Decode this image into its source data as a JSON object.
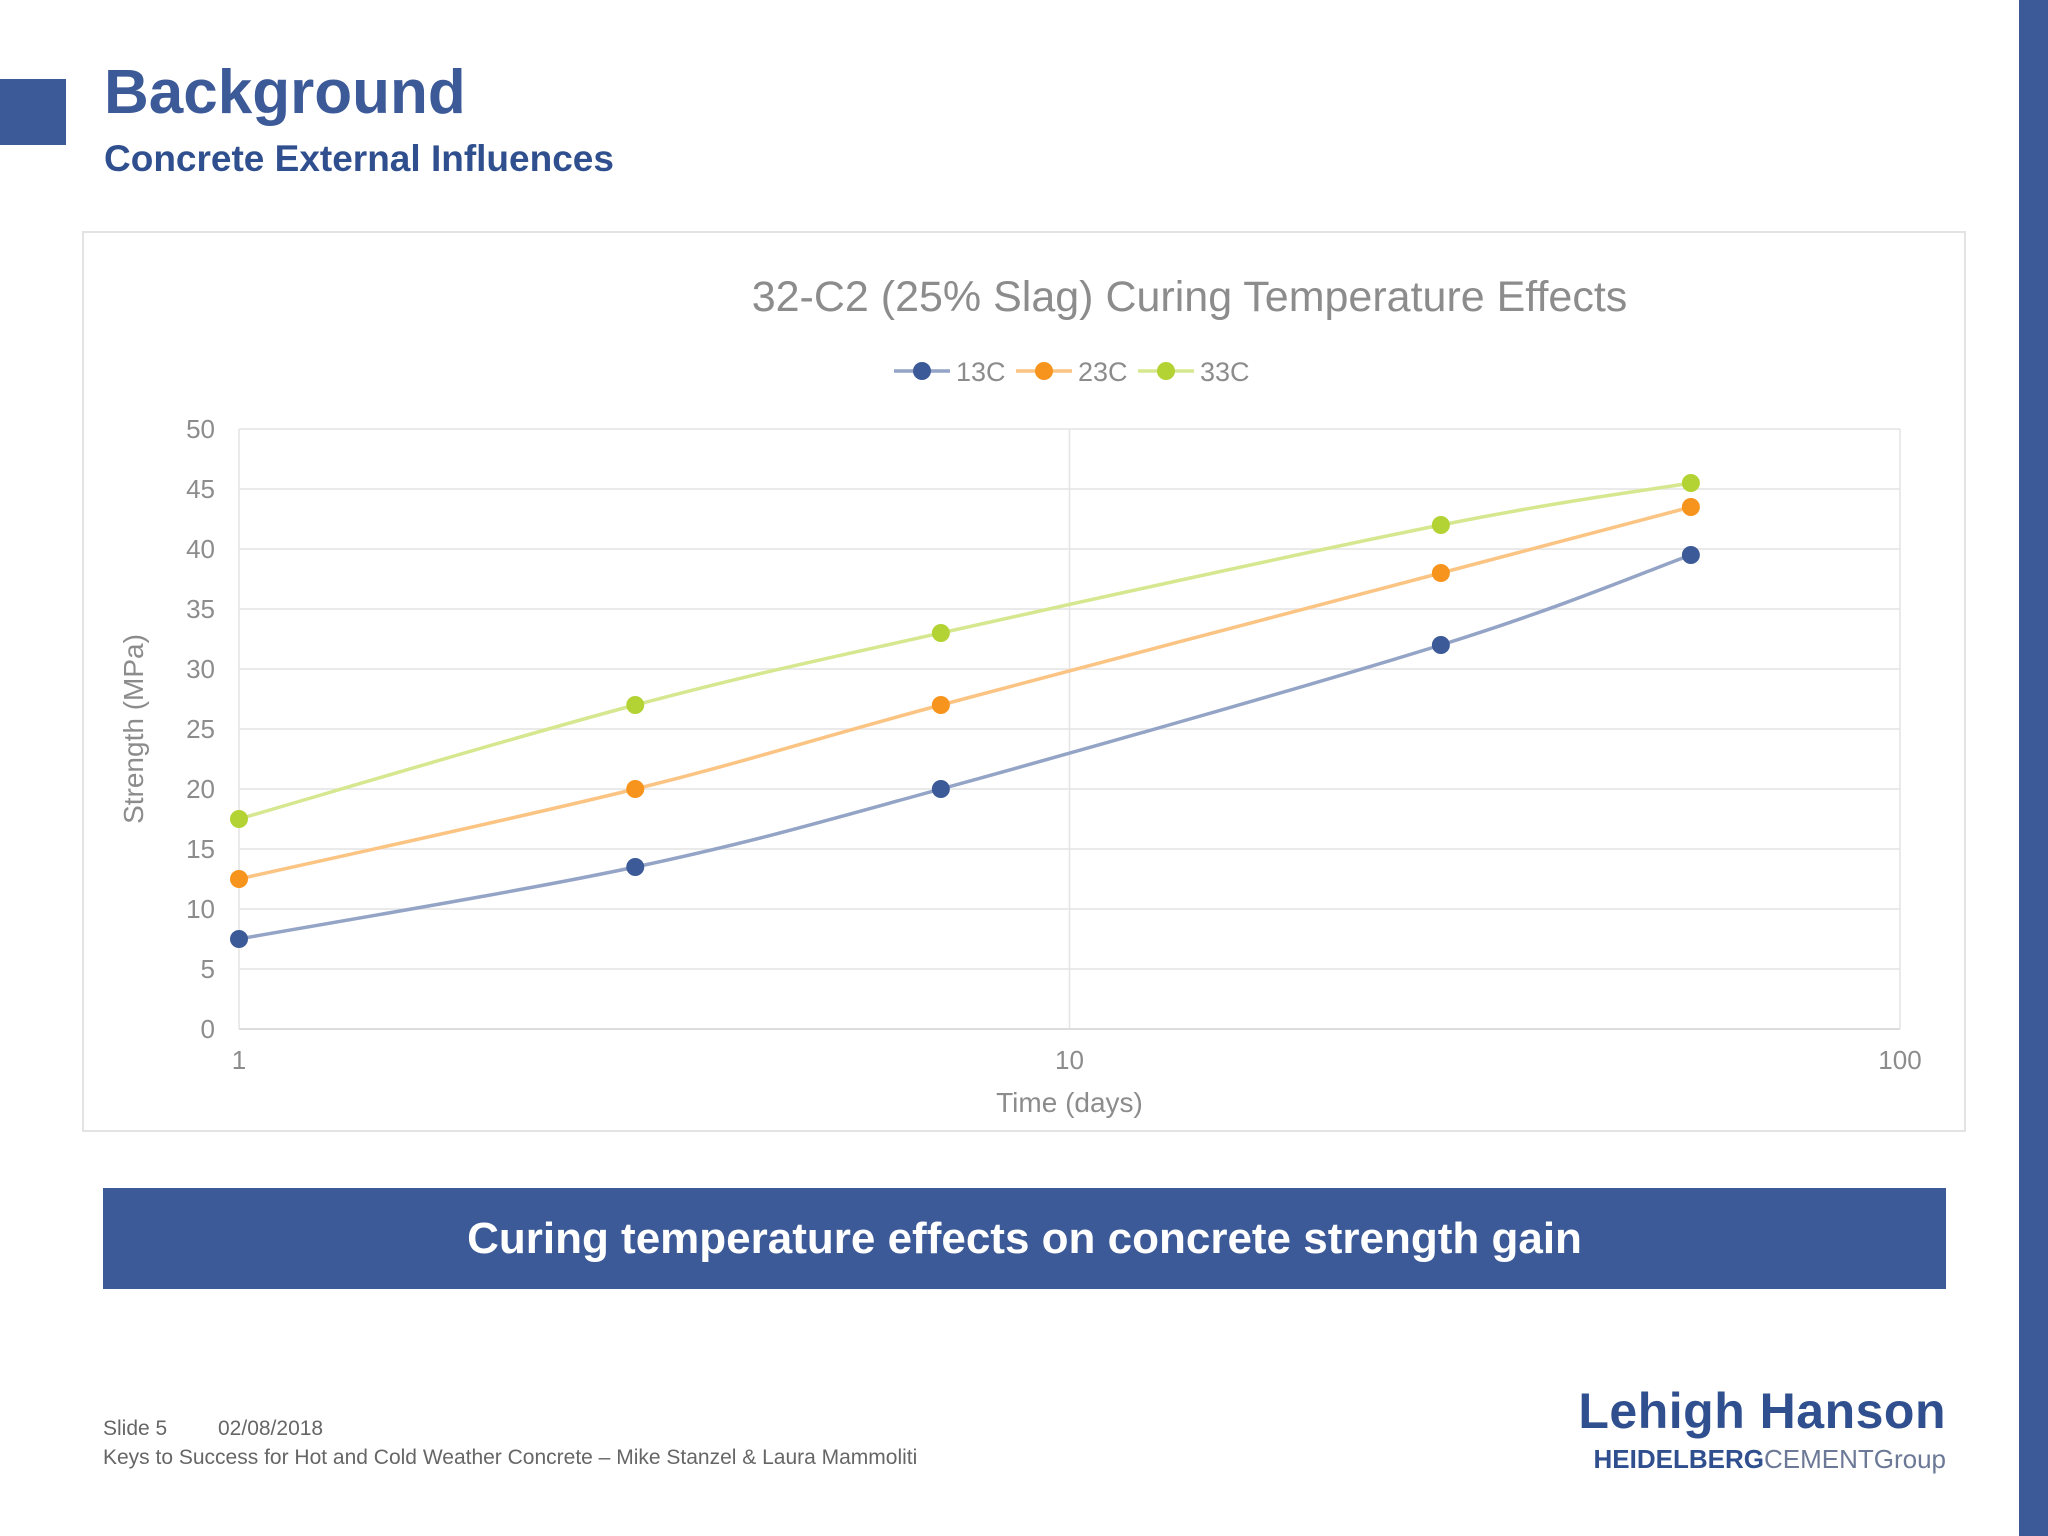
{
  "slide": {
    "title": "Background",
    "subtitle": "Concrete External Influences",
    "banner": "Curing temperature effects on concrete strength gain",
    "footer": {
      "slide_label": "Slide 5",
      "date": "02/08/2018",
      "description": "Keys to Success for Hot and Cold Weather Concrete – Mike Stanzel & Laura Mammoliti"
    },
    "logo": {
      "name": "Lehigh Hanson",
      "group_bold": "HEIDELBERG",
      "group_light": "CEMENT",
      "group_suffix": "Group"
    },
    "colors": {
      "brand": "#3d5a98",
      "stripe": "#3d5a98"
    }
  },
  "chart_data": {
    "type": "line",
    "title": "32-C2 (25% Slag) Curing Temperature Effects",
    "xlabel": "Time (days)",
    "ylabel": "Strength (MPa)",
    "x_scale": "log",
    "xlim": [
      1,
      100
    ],
    "ylim": [
      0,
      50
    ],
    "x_ticks": [
      "1",
      "10",
      "100"
    ],
    "y_ticks": [
      "0",
      "5",
      "10",
      "15",
      "20",
      "25",
      "30",
      "35",
      "40",
      "45",
      "50"
    ],
    "grid": true,
    "legend_position": "top",
    "x": [
      1,
      3,
      7,
      28,
      56
    ],
    "series": [
      {
        "name": "13C",
        "color": "#3d5a98",
        "values": [
          7.5,
          13.5,
          20,
          32,
          39.5
        ]
      },
      {
        "name": "23C",
        "color": "#f7941d",
        "values": [
          12.5,
          20,
          27,
          38,
          43.5
        ]
      },
      {
        "name": "33C",
        "color": "#b3d334",
        "values": [
          17.5,
          27,
          33,
          42,
          45.5
        ]
      }
    ]
  }
}
